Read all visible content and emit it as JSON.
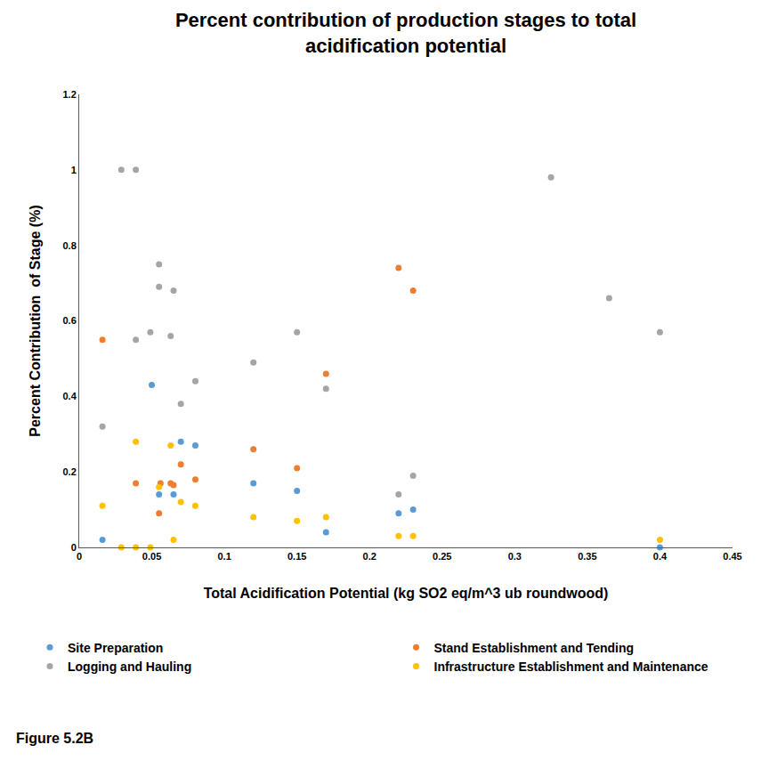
{
  "chart_data": {
    "type": "scatter",
    "title": "Percent contribution of production stages to total acidification potential",
    "x_label": "Total Acidification Potential (kg SO2 eq/m^3 ub roundwood)",
    "y_label": "Percent Contribution  of Stage (%)",
    "annotations": [
      {
        "text": "Figure 5.2B"
      }
    ],
    "xlim": [
      0,
      0.45
    ],
    "xticks": [
      0,
      0.05,
      0.1,
      0.15,
      0.2,
      0.25,
      0.3,
      0.35,
      0.4,
      0.45
    ],
    "ylim": [
      0,
      1.2
    ],
    "yticks": [
      0,
      0.2,
      0.4,
      0.6,
      0.8,
      1,
      1.2
    ],
    "grid": false,
    "legend": "bottom",
    "marker": "circle",
    "series": [
      {
        "name": "Site Preparation",
        "color": "#5b9bd5",
        "x": [
          0.016,
          0.05,
          0.055,
          0.065,
          0.07,
          0.08,
          0.12,
          0.15,
          0.17,
          0.22,
          0.23,
          0.4
        ],
        "values": [
          0.02,
          0.43,
          0.14,
          0.14,
          0.28,
          0.27,
          0.17,
          0.15,
          0.04,
          0.09,
          0.1,
          0
        ]
      },
      {
        "name": "Stand Establishment and Tending",
        "color": "#ed7d31",
        "x": [
          0.016,
          0.039,
          0.055,
          0.056,
          0.063,
          0.065,
          0.07,
          0.08,
          0.12,
          0.15,
          0.17,
          0.22,
          0.23
        ],
        "values": [
          0.55,
          0.17,
          0.09,
          0.17,
          0.17,
          0.165,
          0.22,
          0.18,
          0.26,
          0.21,
          0.46,
          0.74,
          0.68
        ]
      },
      {
        "name": "Logging and Hauling",
        "color": "#a5a5a5",
        "x": [
          0.016,
          0.029,
          0.039,
          0.039,
          0.049,
          0.055,
          0.055,
          0.063,
          0.065,
          0.07,
          0.08,
          0.12,
          0.15,
          0.17,
          0.22,
          0.23,
          0.325,
          0.365,
          0.4
        ],
        "values": [
          0.32,
          1,
          1,
          0.55,
          0.57,
          0.75,
          0.69,
          0.56,
          0.68,
          0.38,
          0.44,
          0.49,
          0.57,
          0.42,
          0.14,
          0.19,
          0.98,
          0.66,
          0.57
        ]
      },
      {
        "name": "Infrastructure Establishment and Maintenance",
        "color": "#ffc000",
        "x": [
          0.016,
          0.029,
          0.039,
          0.039,
          0.049,
          0.055,
          0.063,
          0.065,
          0.07,
          0.08,
          0.12,
          0.15,
          0.17,
          0.22,
          0.23,
          0.4
        ],
        "values": [
          0.11,
          0,
          0.28,
          0,
          0,
          0.16,
          0.27,
          0.02,
          0.12,
          0.11,
          0.08,
          0.07,
          0.08,
          0.03,
          0.03,
          0.02
        ]
      }
    ]
  }
}
